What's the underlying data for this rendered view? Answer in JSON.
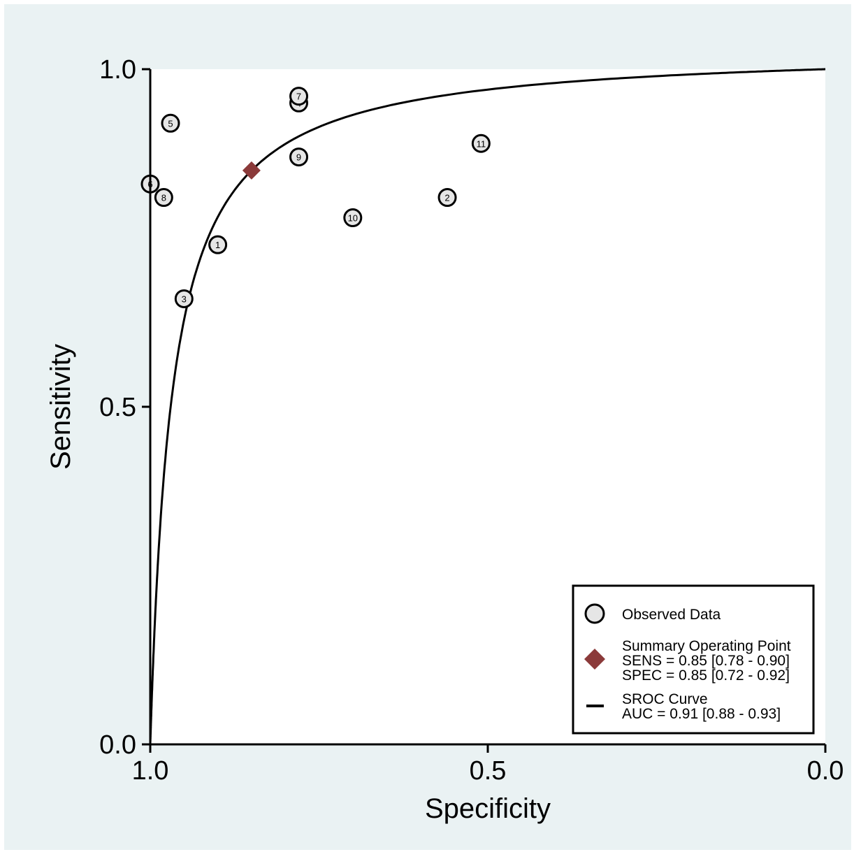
{
  "colors": {
    "outer_background": "#eaf2f3",
    "plot_background": "#ffffff",
    "observed_marker_fill": "#e6e6e6",
    "summary_point": "#8b3a3a",
    "curve": "#000000"
  },
  "chart_data": {
    "type": "scatter",
    "xlabel": "Specificity",
    "ylabel": "Sensitivity",
    "xlim": [
      1.0,
      0.0
    ],
    "ylim": [
      0.0,
      1.0
    ],
    "x_reversed": true,
    "xticks": [
      {
        "value": 1.0,
        "label": "1.0"
      },
      {
        "value": 0.5,
        "label": "0.5"
      },
      {
        "value": 0.0,
        "label": "0.0"
      }
    ],
    "yticks": [
      {
        "value": 0.0,
        "label": "0.0"
      },
      {
        "value": 0.5,
        "label": "0.5"
      },
      {
        "value": 1.0,
        "label": "1.0"
      }
    ],
    "grid": false,
    "legend_position": "bottom-right",
    "observed_data": [
      {
        "label": "1",
        "specificity": 0.9,
        "sensitivity": 0.74
      },
      {
        "label": "2",
        "specificity": 0.56,
        "sensitivity": 0.81
      },
      {
        "label": "3",
        "specificity": 0.95,
        "sensitivity": 0.66
      },
      {
        "label": "4",
        "specificity": 0.78,
        "sensitivity": 0.95
      },
      {
        "label": "5",
        "specificity": 0.97,
        "sensitivity": 0.92
      },
      {
        "label": "6",
        "specificity": 1.0,
        "sensitivity": 0.83
      },
      {
        "label": "7",
        "specificity": 0.78,
        "sensitivity": 0.96
      },
      {
        "label": "8",
        "specificity": 0.98,
        "sensitivity": 0.81
      },
      {
        "label": "9",
        "specificity": 0.78,
        "sensitivity": 0.87
      },
      {
        "label": "10",
        "specificity": 0.7,
        "sensitivity": 0.78
      },
      {
        "label": "11",
        "specificity": 0.51,
        "sensitivity": 0.89
      }
    ],
    "summary_point": {
      "specificity": 0.85,
      "sensitivity": 0.85
    },
    "sroc_curve": {
      "auc": 0.91
    },
    "legend": {
      "observed_label": "Observed Data",
      "summary_title": "Summary Operating Point",
      "summary_sens": "SENS = 0.85 [0.78 - 0.90]",
      "summary_spec": "SPEC = 0.85 [0.72 - 0.92]",
      "curve_title": "SROC Curve",
      "curve_auc": "AUC = 0.91 [0.88 - 0.93]"
    }
  }
}
